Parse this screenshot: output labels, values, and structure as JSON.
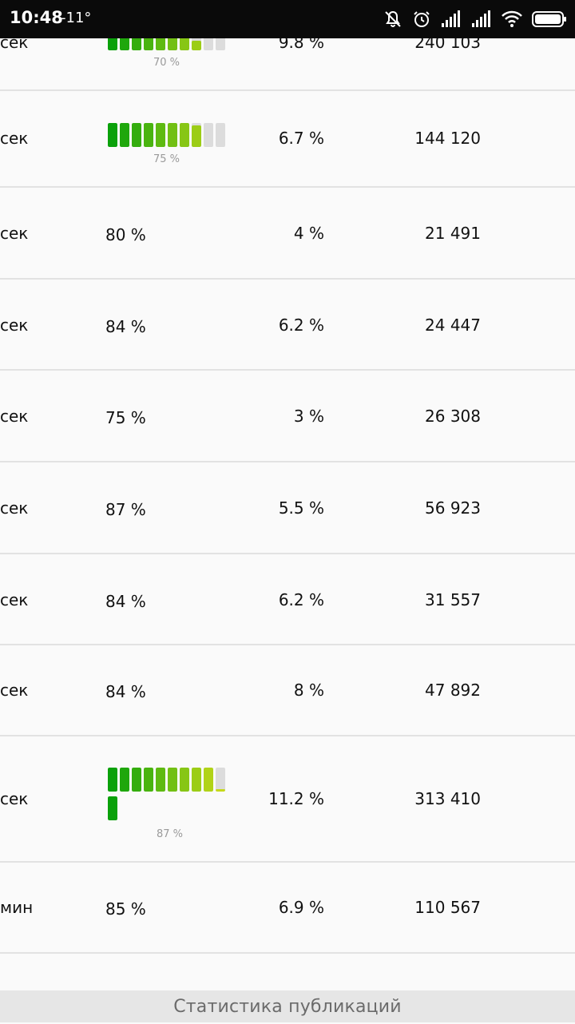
{
  "status_bar": {
    "time": "10:48",
    "temperature": "-11°"
  },
  "rows": [
    {
      "time_suffix": "сек",
      "percent": "",
      "gauge_caption": "70 %",
      "gauge_value": 0.7,
      "share": "9.8 %",
      "views": "240 103"
    },
    {
      "time_suffix": "сек",
      "percent": "",
      "gauge_caption": "75 %",
      "gauge_value": 0.75,
      "share": "6.7 %",
      "views": "144 120"
    },
    {
      "time_suffix": "сек",
      "percent": "80 %",
      "share": "4 %",
      "views": "21 491"
    },
    {
      "time_suffix": "сек",
      "percent": "84 %",
      "share": "6.2 %",
      "views": "24 447"
    },
    {
      "time_suffix": "сек",
      "percent": "75 %",
      "share": "3 %",
      "views": "26 308"
    },
    {
      "time_suffix": "сек",
      "percent": "87 %",
      "share": "5.5 %",
      "views": "56 923"
    },
    {
      "time_suffix": "сек",
      "percent": "84 %",
      "share": "6.2 %",
      "views": "31 557"
    },
    {
      "time_suffix": "сек",
      "percent": "84 %",
      "share": "8 %",
      "views": "47 892"
    },
    {
      "time_suffix": "сек",
      "percent": "",
      "gauge_caption": "87 %",
      "gauge_value": 0.87,
      "share": "11.2 %",
      "views": "313 410"
    },
    {
      "time_suffix": "мин",
      "percent": "85 %",
      "share": "6.9 %",
      "views": "110 567"
    }
  ],
  "footer": {
    "label": "Статистика публикаций"
  },
  "colors": {
    "gauge_start": "#0aa10a",
    "gauge_end": "#c6d91a",
    "gauge_empty": "#dcdcdc",
    "divider": "#e2e2e2"
  }
}
